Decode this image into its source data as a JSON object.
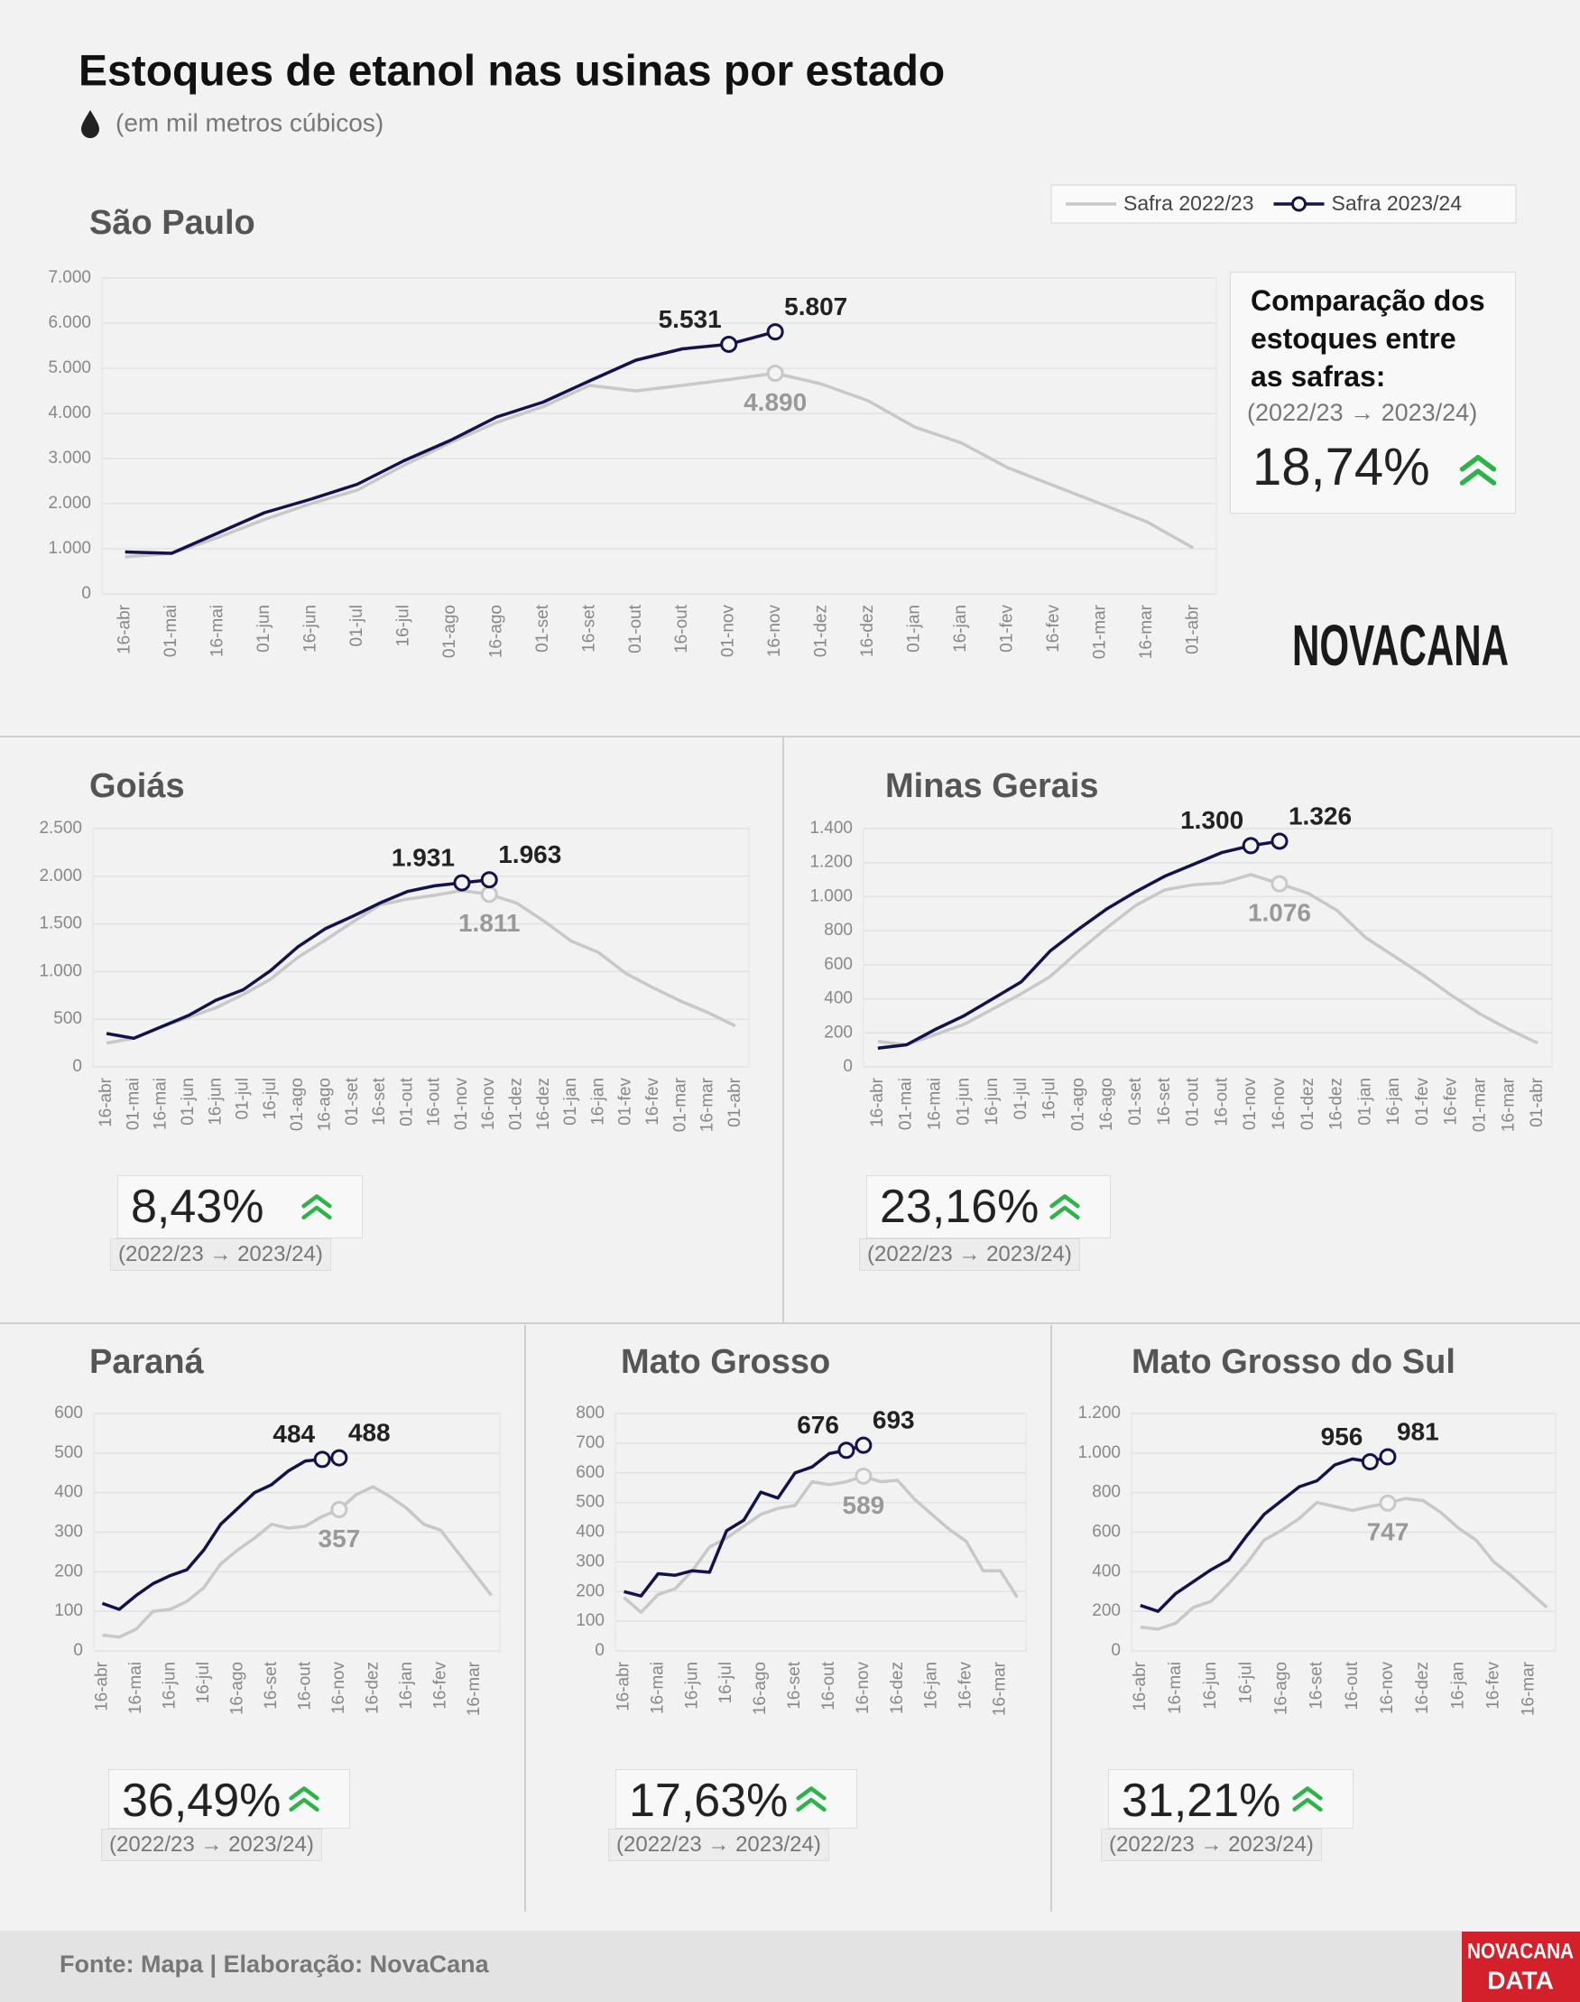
{
  "title": "Estoques de etanol nas usinas por estado",
  "subtitle": "(em mil metros cúbicos)",
  "source": "Fonte: Mapa | Elaboração: NovaCana",
  "logo": "NOVACANA",
  "logo_data": {
    "brand": "NOVACANA",
    "label": "DATA"
  },
  "chart_data": [
    {
      "type": "line",
      "title": "São Paulo",
      "categories": [
        "16-abr",
        "01-mai",
        "16-mai",
        "01-jun",
        "16-jun",
        "01-jul",
        "16-jul",
        "01-ago",
        "16-ago",
        "01-set",
        "16-set",
        "01-out",
        "16-out",
        "01-nov",
        "16-nov",
        "01-dez",
        "16-dez",
        "01-jan",
        "16-jan",
        "01-fev",
        "16-fev",
        "01-mar",
        "16-mar",
        "01-abr"
      ],
      "series": [
        {
          "name": "Safra 2022/23",
          "color": "#c8c8c8",
          "values": [
            820,
            900,
            1250,
            1650,
            2000,
            2300,
            2850,
            3350,
            3800,
            4150,
            4620,
            4500,
            4620,
            4750,
            4890,
            4650,
            4280,
            3700,
            3350,
            2800,
            2400,
            2000,
            1600,
            1020
          ],
          "value_labels": [
            null,
            null,
            null,
            null,
            null,
            null,
            null,
            null,
            null,
            null,
            null,
            null,
            null,
            null,
            "4.890",
            null,
            null,
            null,
            null,
            null,
            null,
            null,
            null,
            null
          ]
        },
        {
          "name": "Safra 2023/24",
          "color": "#14124a",
          "values": [
            930,
            900,
            1350,
            1800,
            2100,
            2430,
            2950,
            3400,
            3920,
            4250,
            4720,
            5180,
            5430,
            5531,
            5807,
            null,
            null,
            null,
            null,
            null,
            null,
            null,
            null,
            null
          ],
          "value_labels": [
            null,
            null,
            null,
            null,
            null,
            null,
            null,
            null,
            null,
            null,
            null,
            null,
            null,
            "5.531",
            "5.807",
            null,
            null,
            null,
            null,
            null,
            null,
            null,
            null,
            null
          ]
        }
      ],
      "ylim": [
        0,
        7000
      ],
      "yticks": [
        0,
        {
          "value": 1000,
          "label": "1.000"
        },
        {
          "value": 2000,
          "label": "2.000"
        },
        {
          "value": 3000,
          "label": "3.000"
        },
        {
          "value": 4000,
          "label": "4.000"
        },
        {
          "value": 5000,
          "label": "5.000"
        },
        {
          "value": 6000,
          "label": "6.000"
        },
        {
          "value": 7000,
          "label": "7.000"
        }
      ],
      "grid": true,
      "legend": "top-right",
      "comparison_title": "Comparação dos estoques entre as safras:",
      "comparison_period": "(2022/23 → 2023/24)",
      "change": 18.74,
      "change_label": "18,74%"
    },
    {
      "type": "line",
      "title": "Goiás",
      "categories": [
        "16-abr",
        "01-mai",
        "16-mai",
        "01-jun",
        "16-jun",
        "01-jul",
        "16-jul",
        "01-ago",
        "16-ago",
        "01-set",
        "16-set",
        "01-out",
        "16-out",
        "01-nov",
        "16-nov",
        "01-dez",
        "16-dez",
        "01-jan",
        "16-jan",
        "01-fev",
        "16-fev",
        "01-mar",
        "16-mar",
        "01-abr"
      ],
      "series": [
        {
          "color": "#c8c8c8",
          "values": [
            250,
            300,
            420,
            520,
            620,
            760,
            920,
            1150,
            1330,
            1520,
            1700,
            1760,
            1800,
            1850,
            1811,
            1720,
            1530,
            1320,
            1200,
            980,
            830,
            690,
            570,
            430
          ],
          "value_labels": [
            null,
            null,
            null,
            null,
            null,
            null,
            null,
            null,
            null,
            null,
            null,
            null,
            null,
            null,
            "1.811",
            null,
            null,
            null,
            null,
            null,
            null,
            null,
            null,
            null
          ]
        },
        {
          "color": "#14124a",
          "values": [
            350,
            300,
            420,
            540,
            700,
            810,
            1010,
            1260,
            1450,
            1580,
            1720,
            1840,
            1900,
            1931,
            1963,
            null,
            null,
            null,
            null,
            null,
            null,
            null,
            null,
            null
          ],
          "value_labels": [
            null,
            null,
            null,
            null,
            null,
            null,
            null,
            null,
            null,
            null,
            null,
            null,
            null,
            "1.931",
            "1.963",
            null,
            null,
            null,
            null,
            null,
            null,
            null,
            null,
            null
          ]
        }
      ],
      "ylim": [
        0,
        2500
      ],
      "yticks": [
        0,
        500,
        {
          "value": 1000,
          "label": "1.000"
        },
        {
          "value": 1500,
          "label": "1.500"
        },
        {
          "value": 2000,
          "label": "2.000"
        },
        {
          "value": 2500,
          "label": "2.500"
        }
      ],
      "grid": true,
      "comparison_period": "(2022/23 → 2023/24)",
      "change": 8.43,
      "change_label": "8,43%"
    },
    {
      "type": "line",
      "title": "Minas Gerais",
      "categories": [
        "16-abr",
        "01-mai",
        "16-mai",
        "01-jun",
        "16-jun",
        "01-jul",
        "16-jul",
        "01-ago",
        "16-ago",
        "01-set",
        "16-set",
        "01-out",
        "16-out",
        "01-nov",
        "16-nov",
        "01-dez",
        "16-dez",
        "01-jan",
        "16-jan",
        "01-fev",
        "16-fev",
        "01-mar",
        "16-mar",
        "01-abr"
      ],
      "series": [
        {
          "color": "#c8c8c8",
          "values": [
            150,
            130,
            190,
            250,
            340,
            430,
            530,
            680,
            820,
            950,
            1040,
            1070,
            1080,
            1130,
            1076,
            1020,
            920,
            760,
            650,
            540,
            420,
            310,
            220,
            140
          ],
          "value_labels": [
            null,
            null,
            null,
            null,
            null,
            null,
            null,
            null,
            null,
            null,
            null,
            null,
            null,
            null,
            "1.076",
            null,
            null,
            null,
            null,
            null,
            null,
            null,
            null,
            null
          ]
        },
        {
          "color": "#14124a",
          "values": [
            110,
            130,
            220,
            300,
            400,
            500,
            680,
            810,
            930,
            1030,
            1120,
            1190,
            1260,
            1300,
            1326,
            null,
            null,
            null,
            null,
            null,
            null,
            null,
            null,
            null
          ],
          "value_labels": [
            null,
            null,
            null,
            null,
            null,
            null,
            null,
            null,
            null,
            null,
            null,
            null,
            null,
            "1.300",
            "1.326",
            null,
            null,
            null,
            null,
            null,
            null,
            null,
            null,
            null
          ]
        }
      ],
      "ylim": [
        0,
        1400
      ],
      "yticks": [
        0,
        200,
        400,
        600,
        800,
        {
          "value": 1000,
          "label": "1.000"
        },
        {
          "value": 1200,
          "label": "1.200"
        },
        {
          "value": 1400,
          "label": "1.400"
        }
      ],
      "grid": true,
      "comparison_period": "(2022/23 → 2023/24)",
      "change": 23.16,
      "change_label": "23,16%"
    },
    {
      "type": "line",
      "title": "Paraná",
      "categories": [
        "16-abr",
        null,
        "16-mai",
        null,
        "16-jun",
        null,
        "16-jul",
        null,
        "16-ago",
        null,
        "16-set",
        null,
        "16-out",
        null,
        "16-nov",
        null,
        "16-dez",
        null,
        "16-jan",
        null,
        "16-fev",
        null,
        "16-mar",
        null
      ],
      "series": [
        {
          "color": "#c8c8c8",
          "values": [
            40,
            35,
            55,
            100,
            105,
            125,
            160,
            220,
            255,
            285,
            320,
            310,
            315,
            340,
            357,
            395,
            415,
            390,
            360,
            320,
            305,
            250,
            195,
            140
          ],
          "value_labels": [
            null,
            null,
            null,
            null,
            null,
            null,
            null,
            null,
            null,
            null,
            null,
            null,
            null,
            null,
            "357",
            null,
            null,
            null,
            null,
            null,
            null,
            null,
            null,
            null
          ]
        },
        {
          "color": "#14124a",
          "values": [
            120,
            105,
            140,
            170,
            190,
            205,
            255,
            320,
            360,
            400,
            420,
            455,
            480,
            484,
            488,
            null,
            null,
            null,
            null,
            null,
            null,
            null,
            null,
            null
          ],
          "value_labels": [
            null,
            null,
            null,
            null,
            null,
            null,
            null,
            null,
            null,
            null,
            null,
            null,
            null,
            "484",
            "488",
            null,
            null,
            null,
            null,
            null,
            null,
            null,
            null,
            null
          ]
        }
      ],
      "ylim": [
        0,
        600
      ],
      "yticks": [
        0,
        100,
        200,
        300,
        400,
        500,
        600
      ],
      "grid": true,
      "comparison_period": "(2022/23 → 2023/24)",
      "change": 36.49,
      "change_label": "36,49%"
    },
    {
      "type": "line",
      "title": "Mato Grosso",
      "categories": [
        "16-abr",
        null,
        "16-mai",
        null,
        "16-jun",
        null,
        "16-jul",
        null,
        "16-ago",
        null,
        "16-set",
        null,
        "16-out",
        null,
        "16-nov",
        null,
        "16-dez",
        null,
        "16-jan",
        null,
        "16-fev",
        null,
        "16-mar",
        null
      ],
      "series": [
        {
          "color": "#c8c8c8",
          "values": [
            180,
            130,
            190,
            210,
            270,
            350,
            380,
            420,
            460,
            480,
            490,
            570,
            560,
            570,
            589,
            570,
            575,
            510,
            460,
            410,
            370,
            270,
            270,
            180
          ],
          "value_labels": [
            null,
            null,
            null,
            null,
            null,
            null,
            null,
            null,
            null,
            null,
            null,
            null,
            null,
            null,
            "589",
            null,
            null,
            null,
            null,
            null,
            null,
            null,
            null,
            null
          ]
        },
        {
          "color": "#14124a",
          "values": [
            200,
            185,
            260,
            255,
            270,
            265,
            405,
            440,
            535,
            515,
            600,
            620,
            665,
            676,
            693,
            null,
            null,
            null,
            null,
            null,
            null,
            null,
            null,
            null
          ],
          "value_labels": [
            null,
            null,
            null,
            null,
            null,
            null,
            null,
            null,
            null,
            null,
            null,
            null,
            null,
            "676",
            "693",
            null,
            null,
            null,
            null,
            null,
            null,
            null,
            null,
            null
          ]
        }
      ],
      "ylim": [
        0,
        800
      ],
      "yticks": [
        0,
        100,
        200,
        300,
        400,
        500,
        600,
        700,
        800
      ],
      "grid": true,
      "comparison_period": "(2022/23 → 2023/24)",
      "change": 17.63,
      "change_label": "17,63%"
    },
    {
      "type": "line",
      "title": "Mato Grosso do Sul",
      "categories": [
        "16-abr",
        null,
        "16-mai",
        null,
        "16-jun",
        null,
        "16-jul",
        null,
        "16-ago",
        null,
        "16-set",
        null,
        "16-out",
        null,
        "16-nov",
        null,
        "16-dez",
        null,
        "16-jan",
        null,
        "16-fev",
        null,
        "16-mar",
        null
      ],
      "series": [
        {
          "color": "#c8c8c8",
          "values": [
            120,
            110,
            140,
            220,
            250,
            340,
            440,
            560,
            610,
            670,
            750,
            730,
            710,
            730,
            747,
            770,
            760,
            700,
            620,
            560,
            450,
            380,
            300,
            220
          ],
          "value_labels": [
            null,
            null,
            null,
            null,
            null,
            null,
            null,
            null,
            null,
            null,
            null,
            null,
            null,
            null,
            "747",
            null,
            null,
            null,
            null,
            null,
            null,
            null,
            null,
            null
          ]
        },
        {
          "color": "#14124a",
          "values": [
            230,
            200,
            290,
            350,
            410,
            460,
            580,
            690,
            760,
            830,
            860,
            940,
            970,
            956,
            981,
            null,
            null,
            null,
            null,
            null,
            null,
            null,
            null,
            null
          ],
          "value_labels": [
            null,
            null,
            null,
            null,
            null,
            null,
            null,
            null,
            null,
            null,
            null,
            null,
            null,
            "956",
            "981",
            null,
            null,
            null,
            null,
            null,
            null,
            null,
            null,
            null
          ]
        }
      ],
      "ylim": [
        0,
        1200
      ],
      "yticks": [
        0,
        200,
        400,
        600,
        800,
        {
          "value": 1000,
          "label": "1.000"
        },
        {
          "value": 1200,
          "label": "1.200"
        }
      ],
      "grid": true,
      "comparison_period": "(2022/23 → 2023/24)",
      "change": 31.21,
      "change_label": "31,21%"
    }
  ]
}
